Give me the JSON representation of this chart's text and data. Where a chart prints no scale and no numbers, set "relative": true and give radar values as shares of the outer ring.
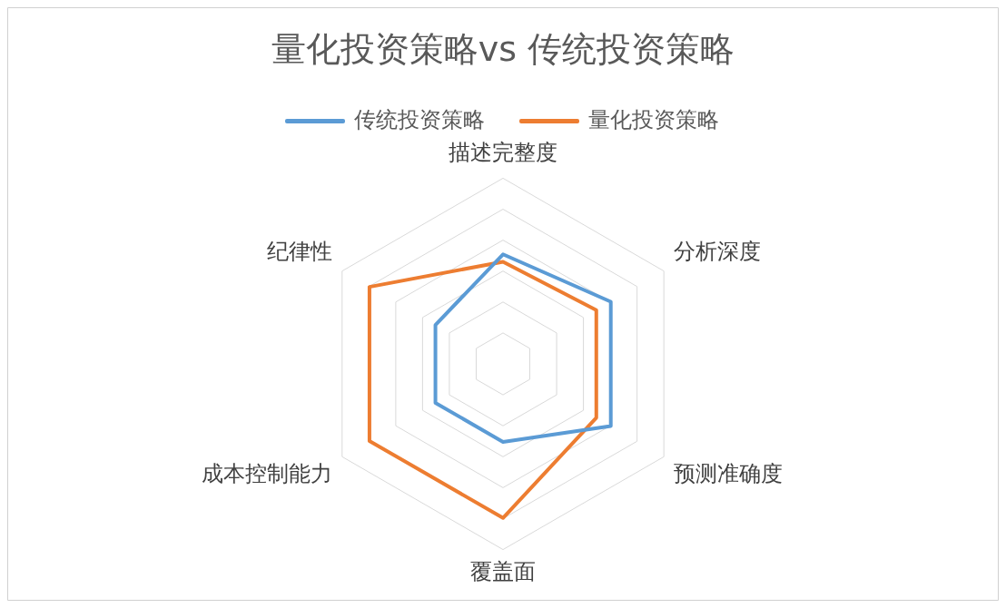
{
  "chart_data": {
    "type": "radar",
    "title": "量化投资策略vs 传统投资策略",
    "categories": [
      "描述完整度",
      "分析深度",
      "预测准确度",
      "覆盖面",
      "成本控制能力",
      "纪律性"
    ],
    "series": [
      {
        "name": "传统投资策略",
        "color": "#5b9bd5",
        "values": [
          0.59,
          0.67,
          0.67,
          0.42,
          0.42,
          0.42
        ]
      },
      {
        "name": "量化投资策略",
        "color": "#ed7d31",
        "values": [
          0.55,
          0.58,
          0.58,
          0.83,
          0.83,
          0.83
        ]
      }
    ],
    "relative": true,
    "grid": true,
    "legend": "top",
    "line_style": "solid"
  }
}
